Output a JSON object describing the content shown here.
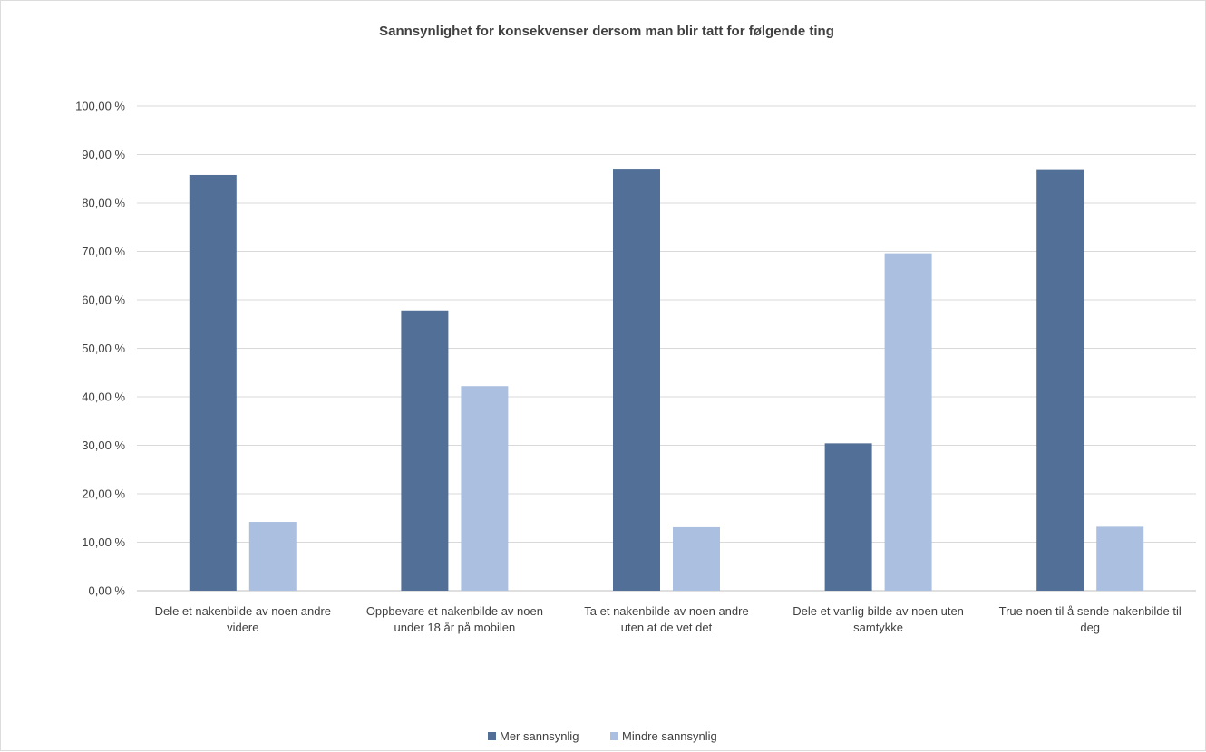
{
  "chart_data": {
    "type": "bar",
    "title": "Sannsynlighet for konsekvenser dersom man blir tatt for følgende ting",
    "xlabel": "",
    "ylabel": "",
    "ylim": [
      0,
      100
    ],
    "y_ticks": [
      0,
      10,
      20,
      30,
      40,
      50,
      60,
      70,
      80,
      90,
      100
    ],
    "y_tick_labels": [
      "0,00 %",
      "10,00 %",
      "20,00 %",
      "30,00 %",
      "40,00 %",
      "50,00 %",
      "60,00 %",
      "70,00 %",
      "80,00 %",
      "90,00 %",
      "100,00 %"
    ],
    "grid": true,
    "legend_position": "bottom",
    "categories": [
      [
        "Dele et nakenbilde av noen andre",
        "videre"
      ],
      [
        "Oppbevare et nakenbilde av noen",
        "under 18 år på mobilen"
      ],
      [
        "Ta et nakenbilde av noen andre",
        "uten at de vet det"
      ],
      [
        "Dele et vanlig bilde av noen uten",
        "samtykke"
      ],
      [
        "True noen til å sende nakenbilde til",
        "deg"
      ]
    ],
    "series": [
      {
        "name": "Mer sannsynlig",
        "color": "#526f97",
        "values": [
          85.8,
          57.8,
          86.9,
          30.4,
          86.8
        ]
      },
      {
        "name": "Mindre sannsynlig",
        "color": "#abc0e0",
        "values": [
          14.2,
          42.2,
          13.1,
          69.6,
          13.2
        ]
      }
    ]
  }
}
